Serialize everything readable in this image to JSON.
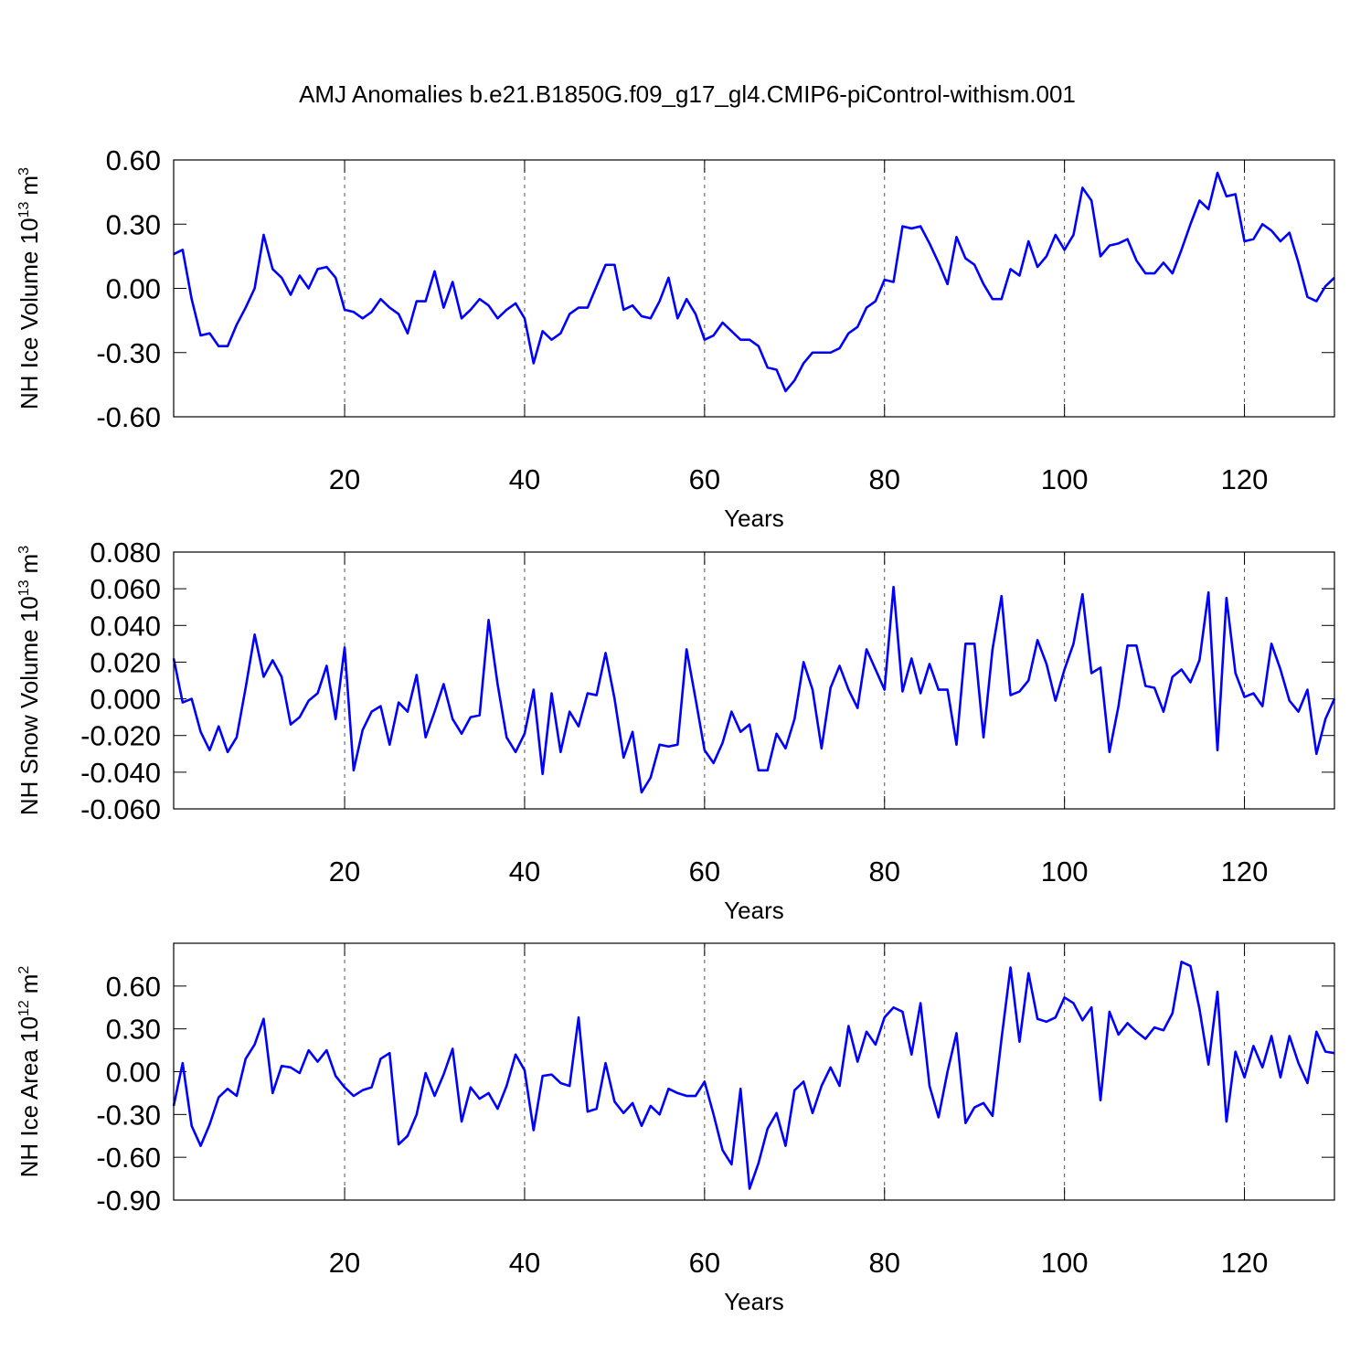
{
  "chart_data": [
    {
      "type": "line",
      "title": "AMJ Anomalies b.e21.B1850G.f09_g17_gl4.CMIP6-piControl-withism.001",
      "ylabel": [
        "NH Ice Volume 10",
        "13",
        "m",
        "3"
      ],
      "xlabel": "Years",
      "xlim": [
        1,
        130
      ],
      "xticks": [
        20,
        40,
        60,
        80,
        100,
        120
      ],
      "grid": true,
      "ylim": [
        -0.6,
        0.6
      ],
      "yticks": [
        {
          "value": -0.6,
          "label": "-0.60"
        },
        {
          "value": -0.3,
          "label": "-0.30"
        },
        {
          "value": 0,
          "label": "0.00"
        },
        {
          "value": 0.3,
          "label": "0.30"
        },
        {
          "value": 0.6,
          "label": "0.60"
        }
      ],
      "color": "#0000ff",
      "x": [
        1,
        2,
        3,
        4,
        5,
        6,
        7,
        8,
        9,
        10,
        11,
        12,
        13,
        14,
        15,
        16,
        17,
        18,
        19,
        20,
        21,
        22,
        23,
        24,
        25,
        26,
        27,
        28,
        29,
        30,
        31,
        32,
        33,
        34,
        35,
        36,
        37,
        38,
        39,
        40,
        41,
        42,
        43,
        44,
        45,
        46,
        47,
        48,
        49,
        50,
        51,
        52,
        53,
        54,
        55,
        56,
        57,
        58,
        59,
        60,
        61,
        62,
        63,
        64,
        65,
        66,
        67,
        68,
        69,
        70,
        71,
        72,
        73,
        74,
        75,
        76,
        77,
        78,
        79,
        80,
        81,
        82,
        83,
        84,
        85,
        86,
        87,
        88,
        89,
        90,
        91,
        92,
        93,
        94,
        95,
        96,
        97,
        98,
        99,
        100,
        101,
        102,
        103,
        104,
        105,
        106,
        107,
        108,
        109,
        110,
        111,
        112,
        113,
        114,
        115,
        116,
        117,
        118,
        119,
        120,
        121,
        122,
        123,
        124,
        125,
        126,
        127,
        128,
        129,
        130
      ],
      "values": [
        0.16,
        0.18,
        -0.05,
        -0.22,
        -0.21,
        -0.27,
        -0.27,
        -0.17,
        -0.09,
        0.0,
        0.25,
        0.09,
        0.05,
        -0.03,
        0.06,
        0.0,
        0.09,
        0.1,
        0.05,
        -0.1,
        -0.11,
        -0.14,
        -0.11,
        -0.05,
        -0.09,
        -0.12,
        -0.21,
        -0.06,
        -0.06,
        0.08,
        -0.09,
        0.03,
        -0.14,
        -0.1,
        -0.05,
        -0.08,
        -0.14,
        -0.1,
        -0.07,
        -0.14,
        -0.35,
        -0.2,
        -0.24,
        -0.21,
        -0.12,
        -0.09,
        -0.09,
        0.01,
        0.11,
        0.11,
        -0.1,
        -0.08,
        -0.13,
        -0.14,
        -0.06,
        0.05,
        -0.14,
        -0.05,
        -0.12,
        -0.24,
        -0.22,
        -0.16,
        -0.2,
        -0.24,
        -0.24,
        -0.27,
        -0.37,
        -0.38,
        -0.48,
        -0.43,
        -0.35,
        -0.3,
        -0.3,
        -0.3,
        -0.28,
        -0.21,
        -0.18,
        -0.09,
        -0.06,
        0.04,
        0.03,
        0.29,
        0.28,
        0.29,
        0.21,
        0.12,
        0.02,
        0.24,
        0.14,
        0.11,
        0.02,
        -0.05,
        -0.05,
        0.09,
        0.06,
        0.22,
        0.1,
        0.15,
        0.25,
        0.18,
        0.25,
        0.47,
        0.41,
        0.15,
        0.2,
        0.21,
        0.23,
        0.13,
        0.07,
        0.07,
        0.12,
        0.07,
        0.18,
        0.3,
        0.41,
        0.37,
        0.54,
        0.43,
        0.44,
        0.22,
        0.23,
        0.3,
        0.27,
        0.22,
        0.26,
        0.12,
        -0.04,
        -0.06,
        0.01,
        0.05
      ]
    },
    {
      "type": "line",
      "ylabel": [
        "NH Snow Volume 10",
        "13",
        "m",
        "3"
      ],
      "xlabel": "Years",
      "xlim": [
        1,
        130
      ],
      "xticks": [
        20,
        40,
        60,
        80,
        100,
        120
      ],
      "grid": true,
      "ylim": [
        -0.06,
        0.08
      ],
      "yticks": [
        {
          "value": -0.06,
          "label": "-0.060"
        },
        {
          "value": -0.04,
          "label": "-0.040"
        },
        {
          "value": -0.02,
          "label": "-0.020"
        },
        {
          "value": 0,
          "label": "0.000"
        },
        {
          "value": 0.02,
          "label": "0.020"
        },
        {
          "value": 0.04,
          "label": "0.040"
        },
        {
          "value": 0.06,
          "label": "0.060"
        },
        {
          "value": 0.08,
          "label": "0.080"
        }
      ],
      "color": "#0000ff",
      "x": [
        1,
        2,
        3,
        4,
        5,
        6,
        7,
        8,
        9,
        10,
        11,
        12,
        13,
        14,
        15,
        16,
        17,
        18,
        19,
        20,
        21,
        22,
        23,
        24,
        25,
        26,
        27,
        28,
        29,
        30,
        31,
        32,
        33,
        34,
        35,
        36,
        37,
        38,
        39,
        40,
        41,
        42,
        43,
        44,
        45,
        46,
        47,
        48,
        49,
        50,
        51,
        52,
        53,
        54,
        55,
        56,
        57,
        58,
        59,
        60,
        61,
        62,
        63,
        64,
        65,
        66,
        67,
        68,
        69,
        70,
        71,
        72,
        73,
        74,
        75,
        76,
        77,
        78,
        79,
        80,
        81,
        82,
        83,
        84,
        85,
        86,
        87,
        88,
        89,
        90,
        91,
        92,
        93,
        94,
        95,
        96,
        97,
        98,
        99,
        100,
        101,
        102,
        103,
        104,
        105,
        106,
        107,
        108,
        109,
        110,
        111,
        112,
        113,
        114,
        115,
        116,
        117,
        118,
        119,
        120,
        121,
        122,
        123,
        124,
        125,
        126,
        127,
        128,
        129,
        130
      ],
      "values": [
        0.022,
        -0.002,
        0.0,
        -0.018,
        -0.028,
        -0.015,
        -0.029,
        -0.021,
        0.006,
        0.035,
        0.012,
        0.021,
        0.012,
        -0.014,
        -0.01,
        -0.001,
        0.003,
        0.018,
        -0.011,
        0.028,
        -0.039,
        -0.017,
        -0.007,
        -0.004,
        -0.025,
        -0.002,
        -0.007,
        0.013,
        -0.021,
        -0.007,
        0.008,
        -0.011,
        -0.019,
        -0.01,
        -0.009,
        0.043,
        0.008,
        -0.021,
        -0.029,
        -0.019,
        0.005,
        -0.041,
        0.003,
        -0.029,
        -0.007,
        -0.015,
        0.003,
        0.002,
        0.025,
        0.0,
        -0.032,
        -0.018,
        -0.051,
        -0.043,
        -0.025,
        -0.026,
        -0.025,
        0.027,
        0.0,
        -0.028,
        -0.035,
        -0.024,
        -0.007,
        -0.018,
        -0.014,
        -0.039,
        -0.039,
        -0.019,
        -0.027,
        -0.011,
        0.02,
        0.005,
        -0.027,
        0.006,
        0.018,
        0.005,
        -0.005,
        0.027,
        0.016,
        0.005,
        0.061,
        0.004,
        0.022,
        0.003,
        0.019,
        0.005,
        0.005,
        -0.025,
        0.03,
        0.03,
        -0.021,
        0.027,
        0.056,
        0.002,
        0.004,
        0.01,
        0.032,
        0.019,
        -0.001,
        0.016,
        0.03,
        0.057,
        0.014,
        0.017,
        -0.029,
        -0.004,
        0.029,
        0.029,
        0.007,
        0.006,
        -0.007,
        0.012,
        0.016,
        0.009,
        0.021,
        0.058,
        -0.028,
        0.055,
        0.014,
        0.001,
        0.003,
        -0.004,
        0.03,
        0.016,
        -0.001,
        -0.007,
        0.005,
        -0.03,
        -0.011,
        0.0
      ]
    },
    {
      "type": "line",
      "ylabel": [
        "NH Ice Area 10",
        "12",
        "m",
        "2"
      ],
      "xlabel": "Years",
      "xlim": [
        1,
        130
      ],
      "xticks": [
        20,
        40,
        60,
        80,
        100,
        120
      ],
      "grid": true,
      "ylim": [
        -0.9,
        0.9
      ],
      "yticks": [
        {
          "value": -0.9,
          "label": "-0.90"
        },
        {
          "value": -0.6,
          "label": "-0.60"
        },
        {
          "value": -0.3,
          "label": "-0.30"
        },
        {
          "value": 0,
          "label": "0.00"
        },
        {
          "value": 0.3,
          "label": "0.30"
        },
        {
          "value": 0.6,
          "label": "0.60"
        }
      ],
      "color": "#0000ff",
      "x": [
        1,
        2,
        3,
        4,
        5,
        6,
        7,
        8,
        9,
        10,
        11,
        12,
        13,
        14,
        15,
        16,
        17,
        18,
        19,
        20,
        21,
        22,
        23,
        24,
        25,
        26,
        27,
        28,
        29,
        30,
        31,
        32,
        33,
        34,
        35,
        36,
        37,
        38,
        39,
        40,
        41,
        42,
        43,
        44,
        45,
        46,
        47,
        48,
        49,
        50,
        51,
        52,
        53,
        54,
        55,
        56,
        57,
        58,
        59,
        60,
        61,
        62,
        63,
        64,
        65,
        66,
        67,
        68,
        69,
        70,
        71,
        72,
        73,
        74,
        75,
        76,
        77,
        78,
        79,
        80,
        81,
        82,
        83,
        84,
        85,
        86,
        87,
        88,
        89,
        90,
        91,
        92,
        93,
        94,
        95,
        96,
        97,
        98,
        99,
        100,
        101,
        102,
        103,
        104,
        105,
        106,
        107,
        108,
        109,
        110,
        111,
        112,
        113,
        114,
        115,
        116,
        117,
        118,
        119,
        120,
        121,
        122,
        123,
        124,
        125,
        126,
        127,
        128,
        129,
        130
      ],
      "values": [
        -0.24,
        0.06,
        -0.38,
        -0.52,
        -0.37,
        -0.18,
        -0.12,
        -0.17,
        0.09,
        0.19,
        0.37,
        -0.15,
        0.04,
        0.03,
        -0.01,
        0.15,
        0.07,
        0.15,
        -0.03,
        -0.11,
        -0.17,
        -0.13,
        -0.11,
        0.09,
        0.13,
        -0.51,
        -0.45,
        -0.3,
        -0.01,
        -0.17,
        -0.02,
        0.16,
        -0.35,
        -0.11,
        -0.19,
        -0.15,
        -0.26,
        -0.1,
        0.12,
        0.01,
        -0.41,
        -0.03,
        -0.02,
        -0.08,
        -0.1,
        0.38,
        -0.28,
        -0.26,
        0.06,
        -0.21,
        -0.29,
        -0.22,
        -0.38,
        -0.24,
        -0.3,
        -0.12,
        -0.15,
        -0.17,
        -0.17,
        -0.07,
        -0.3,
        -0.55,
        -0.65,
        -0.12,
        -0.82,
        -0.64,
        -0.4,
        -0.29,
        -0.52,
        -0.13,
        -0.07,
        -0.29,
        -0.1,
        0.03,
        -0.1,
        0.32,
        0.07,
        0.28,
        0.19,
        0.38,
        0.45,
        0.42,
        0.12,
        0.48,
        -0.1,
        -0.32,
        0.0,
        0.27,
        -0.36,
        -0.25,
        -0.22,
        -0.31,
        0.23,
        0.73,
        0.21,
        0.69,
        0.37,
        0.35,
        0.38,
        0.52,
        0.48,
        0.36,
        0.45,
        -0.2,
        0.42,
        0.26,
        0.34,
        0.28,
        0.23,
        0.31,
        0.29,
        0.41,
        0.77,
        0.74,
        0.44,
        0.05,
        0.56,
        -0.35,
        0.14,
        -0.04,
        0.18,
        0.03,
        0.25,
        -0.04,
        0.25,
        0.06,
        -0.08,
        0.28,
        0.14,
        0.13
      ]
    }
  ]
}
